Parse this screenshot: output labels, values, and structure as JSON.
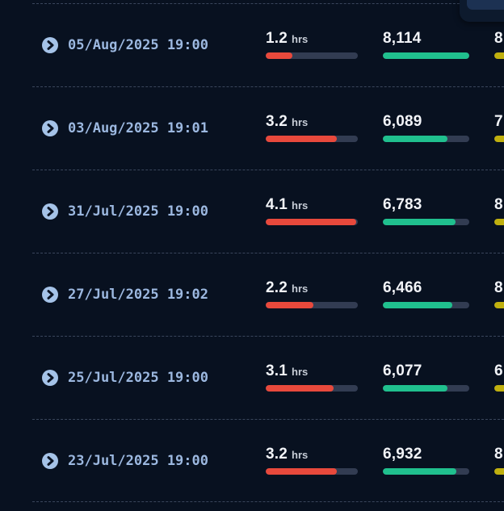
{
  "colors": {
    "background": "#081120",
    "accent_red": "#e8493c",
    "accent_green": "#20c08e",
    "accent_yellow": "#c0b00e",
    "bar_track": "#323c52",
    "timestamp_text": "#9cb8e0",
    "value_text": "#f2f4f8",
    "popup_card": "#0d1a2d",
    "popup_button": "#1c3152"
  },
  "icons": {
    "expand": "chevron-right-circle"
  },
  "table": {
    "rows": [
      {
        "timestamp": "05/Aug/2025 19:00",
        "duration": {
          "value": "1.2",
          "unit": "hrs",
          "pct": 29
        },
        "count": {
          "value": "8,114",
          "pct": 100
        },
        "extra": {
          "value": "8",
          "pct": 100
        }
      },
      {
        "timestamp": "03/Aug/2025 19:01",
        "duration": {
          "value": "3.2",
          "unit": "hrs",
          "pct": 77
        },
        "count": {
          "value": "6,089",
          "pct": 75
        },
        "extra": {
          "value": "7",
          "pct": 100
        }
      },
      {
        "timestamp": "31/Jul/2025 19:00",
        "duration": {
          "value": "4.1",
          "unit": "hrs",
          "pct": 98
        },
        "count": {
          "value": "6,783",
          "pct": 84
        },
        "extra": {
          "value": "8",
          "pct": 100
        }
      },
      {
        "timestamp": "27/Jul/2025 19:02",
        "duration": {
          "value": "2.2",
          "unit": "hrs",
          "pct": 52
        },
        "count": {
          "value": "6,466",
          "pct": 80
        },
        "extra": {
          "value": "8",
          "pct": 100
        }
      },
      {
        "timestamp": "25/Jul/2025 19:00",
        "duration": {
          "value": "3.1",
          "unit": "hrs",
          "pct": 74
        },
        "count": {
          "value": "6,077",
          "pct": 75
        },
        "extra": {
          "value": "6",
          "pct": 100
        }
      },
      {
        "timestamp": "23/Jul/2025 19:00",
        "duration": {
          "value": "3.2",
          "unit": "hrs",
          "pct": 77
        },
        "count": {
          "value": "6,932",
          "pct": 85
        },
        "extra": {
          "value": "8",
          "pct": 100
        }
      }
    ]
  }
}
